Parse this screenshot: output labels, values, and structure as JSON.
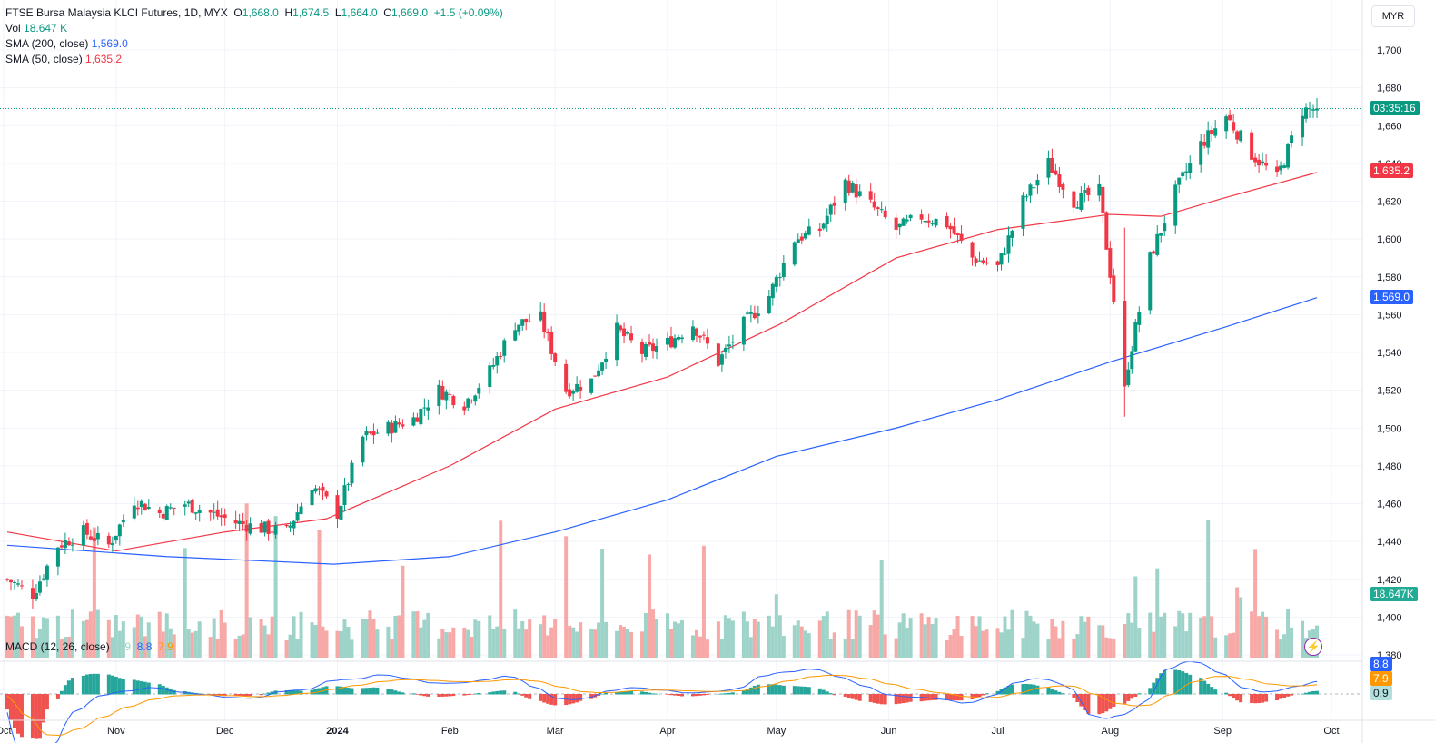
{
  "legend": {
    "symbol": "FTSE Bursa Malaysia KLCI Futures, 1D, MYX",
    "open_label": "O",
    "open": "1,668.0",
    "high_label": "H",
    "high": "1,674.5",
    "low_label": "L",
    "low": "1,664.0",
    "close_label": "C",
    "close": "1,669.0",
    "change": "+1.5 (+0.09%)",
    "vol_label": "Vol",
    "vol": "18.647 K",
    "sma200_label": "SMA (200, close)",
    "sma200": "1,569.0",
    "sma50_label": "SMA (50, close)",
    "sma50": "1,635.2"
  },
  "macd_legend": {
    "label": "MACD (12, 26, close)",
    "hist": "0.9",
    "macd": "8.8",
    "signal": "7.9"
  },
  "currency": "MYR",
  "badges": {
    "countdown": "03:35:16",
    "sma50": "1,635.2",
    "sma200": "1,569.0",
    "volume": "18.647K",
    "macd": "8.8",
    "signal": "7.9",
    "hist": "0.9"
  },
  "colors": {
    "up": "#089981",
    "down": "#f23645",
    "sma50": "#f23645",
    "sma200": "#2962ff",
    "macd": "#2962ff",
    "signal": "#ff9800",
    "vol_up": "#9ed3c9",
    "vol_down": "#f7a9a7"
  },
  "chart_data": {
    "type": "candlestick",
    "y_ticks": [
      1380,
      1400,
      1420,
      1440,
      1460,
      1480,
      1500,
      1520,
      1540,
      1560,
      1580,
      1600,
      1620,
      1640,
      1660,
      1680,
      1700
    ],
    "ylim": [
      1370,
      1710
    ],
    "x_labels": [
      "Oct",
      "Nov",
      "Dec",
      "2024",
      "Feb",
      "Mar",
      "Apr",
      "May",
      "Jun",
      "Jul",
      "Aug",
      "Sep",
      "Oct"
    ],
    "x_range": [
      "2023-09-30",
      "2024-09-30"
    ],
    "waypoints": [
      [
        "2023-10-02",
        1420
      ],
      [
        "2023-10-09",
        1412
      ],
      [
        "2023-10-16",
        1438
      ],
      [
        "2023-10-23",
        1445
      ],
      [
        "2023-10-30",
        1438
      ],
      [
        "2023-11-06",
        1462
      ],
      [
        "2023-11-13",
        1455
      ],
      [
        "2023-11-20",
        1460
      ],
      [
        "2023-11-27",
        1455
      ],
      [
        "2023-12-04",
        1450
      ],
      [
        "2023-12-11",
        1447
      ],
      [
        "2023-12-18",
        1445
      ],
      [
        "2023-12-25",
        1470
      ],
      [
        "2024-01-01",
        1455
      ],
      [
        "2024-01-08",
        1495
      ],
      [
        "2024-01-15",
        1500
      ],
      [
        "2024-01-22",
        1505
      ],
      [
        "2024-01-29",
        1520
      ],
      [
        "2024-02-05",
        1513
      ],
      [
        "2024-02-12",
        1530
      ],
      [
        "2024-02-19",
        1555
      ],
      [
        "2024-02-26",
        1558
      ],
      [
        "2024-03-04",
        1520
      ],
      [
        "2024-03-11",
        1525
      ],
      [
        "2024-03-18",
        1552
      ],
      [
        "2024-03-25",
        1540
      ],
      [
        "2024-04-01",
        1545
      ],
      [
        "2024-04-08",
        1555
      ],
      [
        "2024-04-15",
        1535
      ],
      [
        "2024-04-22",
        1555
      ],
      [
        "2024-04-29",
        1570
      ],
      [
        "2024-05-06",
        1600
      ],
      [
        "2024-05-13",
        1605
      ],
      [
        "2024-05-20",
        1630
      ],
      [
        "2024-05-27",
        1618
      ],
      [
        "2024-06-03",
        1605
      ],
      [
        "2024-06-10",
        1612
      ],
      [
        "2024-06-17",
        1608
      ],
      [
        "2024-06-24",
        1590
      ],
      [
        "2024-07-01",
        1585
      ],
      [
        "2024-07-08",
        1620
      ],
      [
        "2024-07-15",
        1640
      ],
      [
        "2024-07-22",
        1620
      ],
      [
        "2024-07-29",
        1625
      ],
      [
        "2024-08-05",
        1525
      ],
      [
        "2024-08-12",
        1590
      ],
      [
        "2024-08-19",
        1625
      ],
      [
        "2024-08-26",
        1650
      ],
      [
        "2024-09-02",
        1665
      ],
      [
        "2024-09-09",
        1645
      ],
      [
        "2024-09-16",
        1632
      ],
      [
        "2024-09-23",
        1668
      ],
      [
        "2024-09-27",
        1669
      ]
    ],
    "sma50": [
      [
        "2023-10-02",
        1445
      ],
      [
        "2023-11-01",
        1435
      ],
      [
        "2023-12-01",
        1445
      ],
      [
        "2023-12-29",
        1452
      ],
      [
        "2024-02-01",
        1480
      ],
      [
        "2024-03-01",
        1510
      ],
      [
        "2024-04-01",
        1527
      ],
      [
        "2024-05-02",
        1555
      ],
      [
        "2024-06-03",
        1590
      ],
      [
        "2024-07-01",
        1605
      ],
      [
        "2024-08-01",
        1613
      ],
      [
        "2024-08-15",
        1612
      ],
      [
        "2024-09-02",
        1622
      ],
      [
        "2024-09-27",
        1635.2
      ]
    ],
    "sma200": [
      [
        "2023-10-02",
        1438
      ],
      [
        "2023-11-15",
        1432
      ],
      [
        "2023-12-31",
        1428
      ],
      [
        "2024-02-01",
        1432
      ],
      [
        "2024-03-01",
        1445
      ],
      [
        "2024-04-01",
        1462
      ],
      [
        "2024-05-01",
        1485
      ],
      [
        "2024-06-03",
        1500
      ],
      [
        "2024-07-01",
        1515
      ],
      [
        "2024-08-01",
        1535
      ],
      [
        "2024-09-01",
        1553
      ],
      [
        "2024-09-27",
        1569.0
      ]
    ],
    "volume_note": "volume bars in thousands of contracts; last bar 18.647K"
  }
}
